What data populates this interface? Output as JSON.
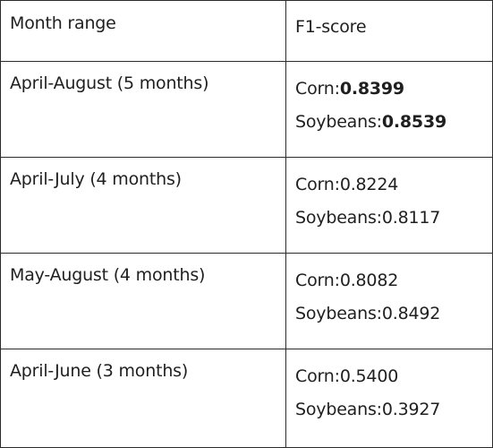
{
  "table": {
    "headers": {
      "month_range": "Month range",
      "f1_score": "F1-score"
    },
    "rows": [
      {
        "range": "April-August (5 months)",
        "corn_label": "Corn:",
        "corn_value": "0.8399",
        "soy_label": "Soybeans:",
        "soy_value": "0.8539",
        "bold": true
      },
      {
        "range": "April-July (4 months)",
        "corn_label": "Corn:",
        "corn_value": "0.8224",
        "soy_label": "Soybeans:",
        "soy_value": "0.8117",
        "bold": false
      },
      {
        "range": "May-August (4 months)",
        "corn_label": "Corn:",
        "corn_value": "0.8082",
        "soy_label": "Soybeans:",
        "soy_value": "0.8492",
        "bold": false
      },
      {
        "range": "April-June (3 months)",
        "corn_label": "Corn:",
        "corn_value": "0.5400",
        "soy_label": "Soybeans:",
        "soy_value": "0.3927",
        "bold": false
      }
    ]
  }
}
